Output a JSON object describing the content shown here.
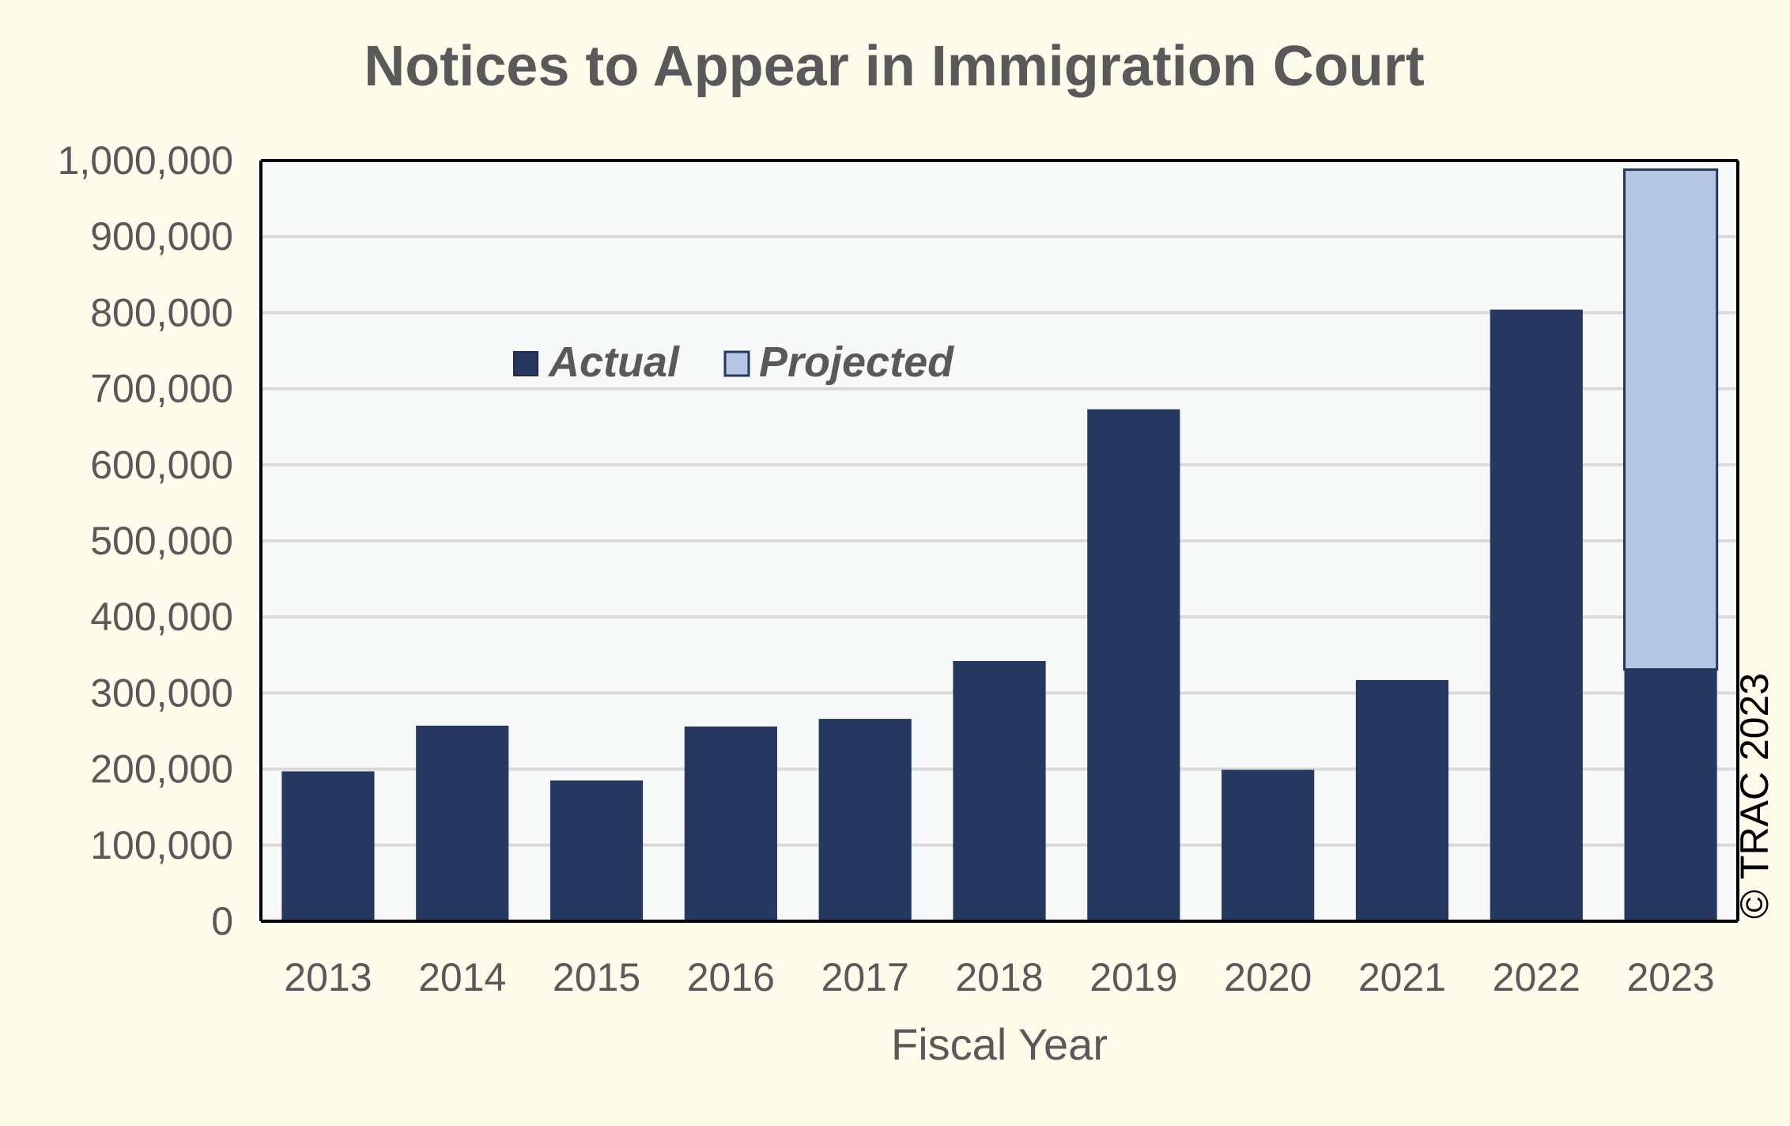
{
  "chart_data": {
    "type": "bar",
    "stacked": true,
    "title": "Notices to Appear in Immigration Court",
    "xlabel": "Fiscal Year",
    "ylabel": "",
    "categories": [
      "2013",
      "2014",
      "2015",
      "2016",
      "2017",
      "2018",
      "2019",
      "2020",
      "2021",
      "2022",
      "2023"
    ],
    "series": [
      {
        "name": "Actual",
        "color": "#263760",
        "values": [
          197000,
          257000,
          185000,
          256000,
          266000,
          342000,
          673000,
          199000,
          317000,
          804000,
          331000
        ]
      },
      {
        "name": "Projected",
        "color": "#b5c6e4",
        "values": [
          0,
          0,
          0,
          0,
          0,
          0,
          0,
          0,
          0,
          0,
          657000
        ]
      }
    ],
    "ylim": [
      0,
      1000000
    ],
    "yticks": [
      0,
      100000,
      200000,
      300000,
      400000,
      500000,
      600000,
      700000,
      800000,
      900000,
      1000000
    ],
    "ytick_labels": [
      "0",
      "100,000",
      "200,000",
      "300,000",
      "400,000",
      "500,000",
      "600,000",
      "700,000",
      "800,000",
      "900,000",
      "1,000,000"
    ],
    "grid": true,
    "legend_position": "upper-left inside plot",
    "plot_background": "#f7f8f8",
    "page_background": "#fdfbea",
    "gridline_color": "#d9d9d9"
  },
  "credit": "© TRAC 2023"
}
